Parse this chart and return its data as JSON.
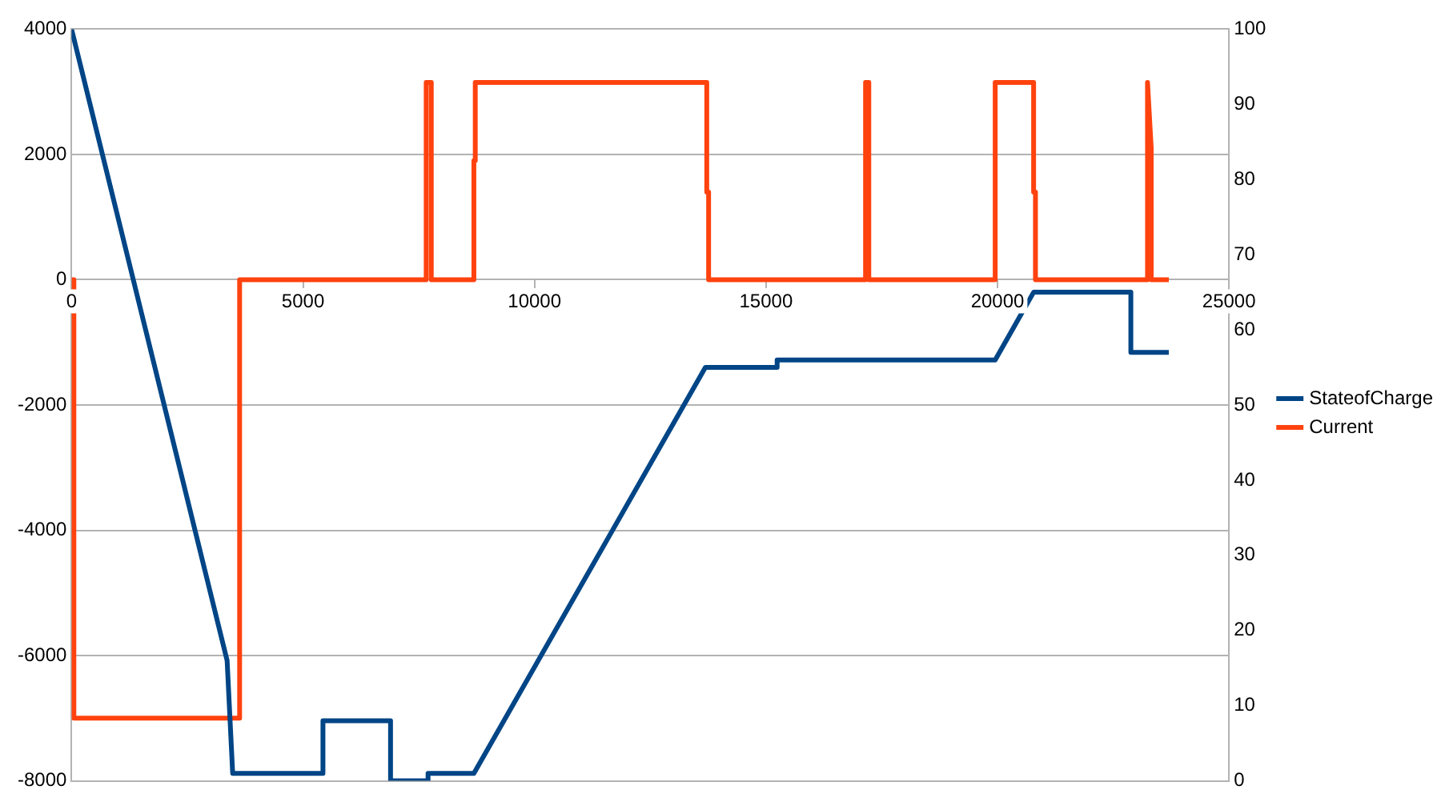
{
  "chart_data": {
    "type": "line",
    "xlim": [
      0,
      25000
    ],
    "xticks": [
      0,
      5000,
      10000,
      15000,
      20000,
      25000
    ],
    "ylim": [
      -8000,
      4000
    ],
    "yticks": [
      -8000,
      -6000,
      -4000,
      -2000,
      0,
      2000,
      4000
    ],
    "y2lim": [
      0,
      100
    ],
    "y2ticks": [
      0,
      10,
      20,
      30,
      40,
      50,
      60,
      70,
      80,
      90,
      100
    ],
    "grid": "y",
    "legend": "right",
    "marker": "none",
    "line_style": "solid",
    "series": [
      {
        "name": "StateofCharge",
        "color": "#004586",
        "axis": "y2",
        "x": [
          0,
          3360,
          3480,
          5430,
          5430,
          6890,
          6890,
          7700,
          7700,
          8690,
          13690,
          15240,
          15240,
          19950,
          20780,
          22880,
          22880,
          23700
        ],
        "values": [
          100,
          16,
          1,
          1,
          8,
          8,
          0,
          0,
          1,
          1,
          55,
          55,
          56,
          56,
          65,
          65,
          57,
          57
        ]
      },
      {
        "name": "Current",
        "color": "#ff420e",
        "x": [
          0,
          50,
          50,
          3630,
          3630,
          7660,
          7660,
          7770,
          7770,
          8690,
          8690,
          8720,
          8720,
          13720,
          13720,
          13760,
          13760,
          17150,
          17150,
          17220,
          17220,
          19950,
          19950,
          20780,
          20780,
          20820,
          20820,
          23240,
          23240,
          23320,
          23320,
          23700
        ],
        "values": [
          0,
          0,
          -7000,
          -7000,
          0,
          0,
          3150,
          3150,
          0,
          0,
          1900,
          1900,
          3150,
          3150,
          1400,
          1400,
          0,
          0,
          3150,
          3150,
          0,
          0,
          3150,
          3150,
          1400,
          1400,
          0,
          0,
          3150,
          2100,
          0,
          0
        ]
      }
    ]
  }
}
